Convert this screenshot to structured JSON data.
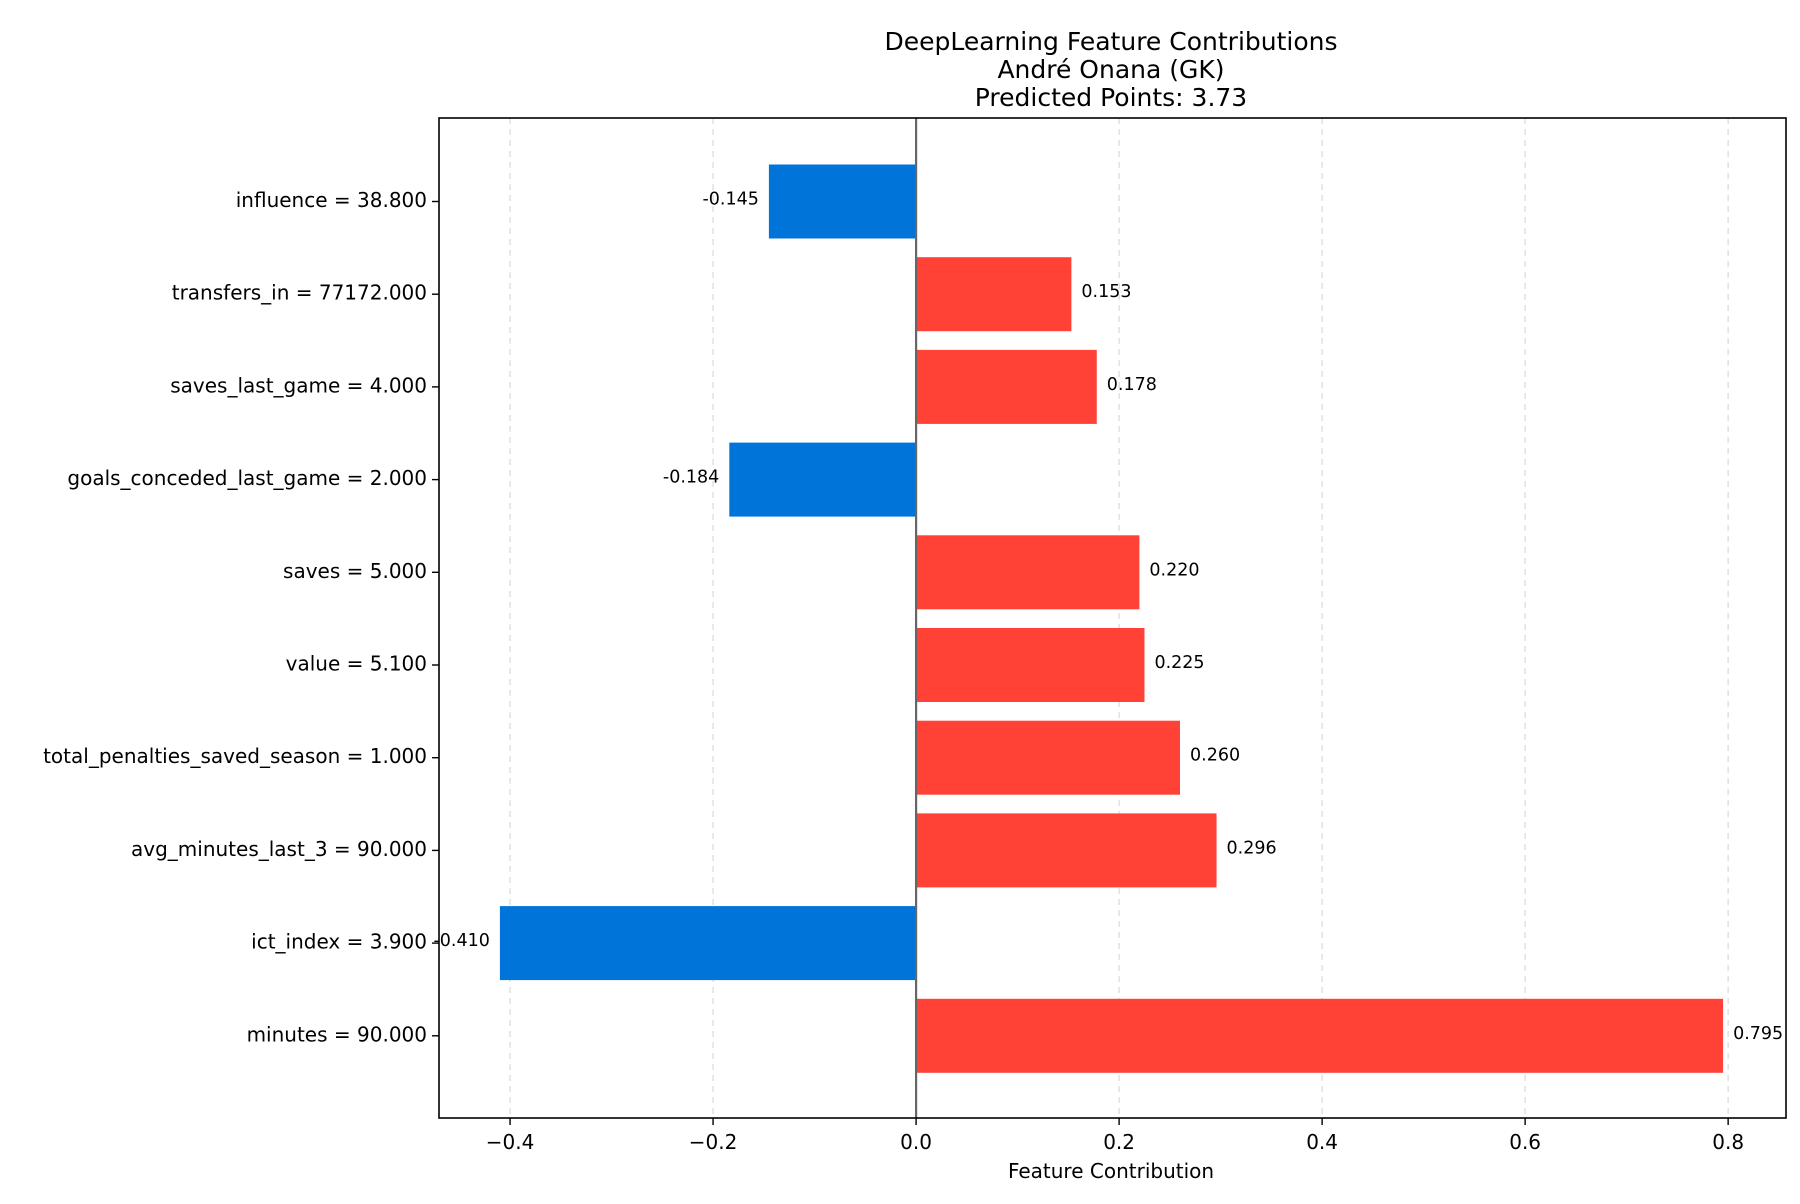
{
  "chart_data": {
    "type": "bar",
    "orientation": "horizontal",
    "title_lines": [
      "DeepLearning Feature Contributions",
      "André Onana (GK)",
      "Predicted Points: 3.73"
    ],
    "xlabel": "Feature Contribution",
    "ylabel": "",
    "xlim": [
      -0.47,
      0.857
    ],
    "xticks": [
      -0.4,
      -0.2,
      0.0,
      0.2,
      0.4,
      0.6,
      0.8
    ],
    "xtick_labels": [
      "−0.4",
      "−0.2",
      "0.0",
      "0.2",
      "0.4",
      "0.6",
      "0.8"
    ],
    "grid": "vertical dashed",
    "colors": {
      "positive": "#ff4136",
      "negative": "#0074d9",
      "zero_line": "#666666"
    },
    "categories": [
      "influence = 38.800",
      "transfers_in = 77172.000",
      "saves_last_game = 4.000",
      "goals_conceded_last_game = 2.000",
      "saves = 5.000",
      "value = 5.100",
      "total_penalties_saved_season = 1.000",
      "avg_minutes_last_3 = 90.000",
      "ict_index = 3.900",
      "minutes = 90.000"
    ],
    "values": [
      -0.145,
      0.153,
      0.178,
      -0.184,
      0.22,
      0.225,
      0.26,
      0.296,
      -0.41,
      0.795
    ],
    "value_labels": [
      "-0.145",
      "0.153",
      "0.178",
      "-0.184",
      "0.220",
      "0.225",
      "0.260",
      "0.296",
      "-0.410",
      "0.795"
    ]
  }
}
